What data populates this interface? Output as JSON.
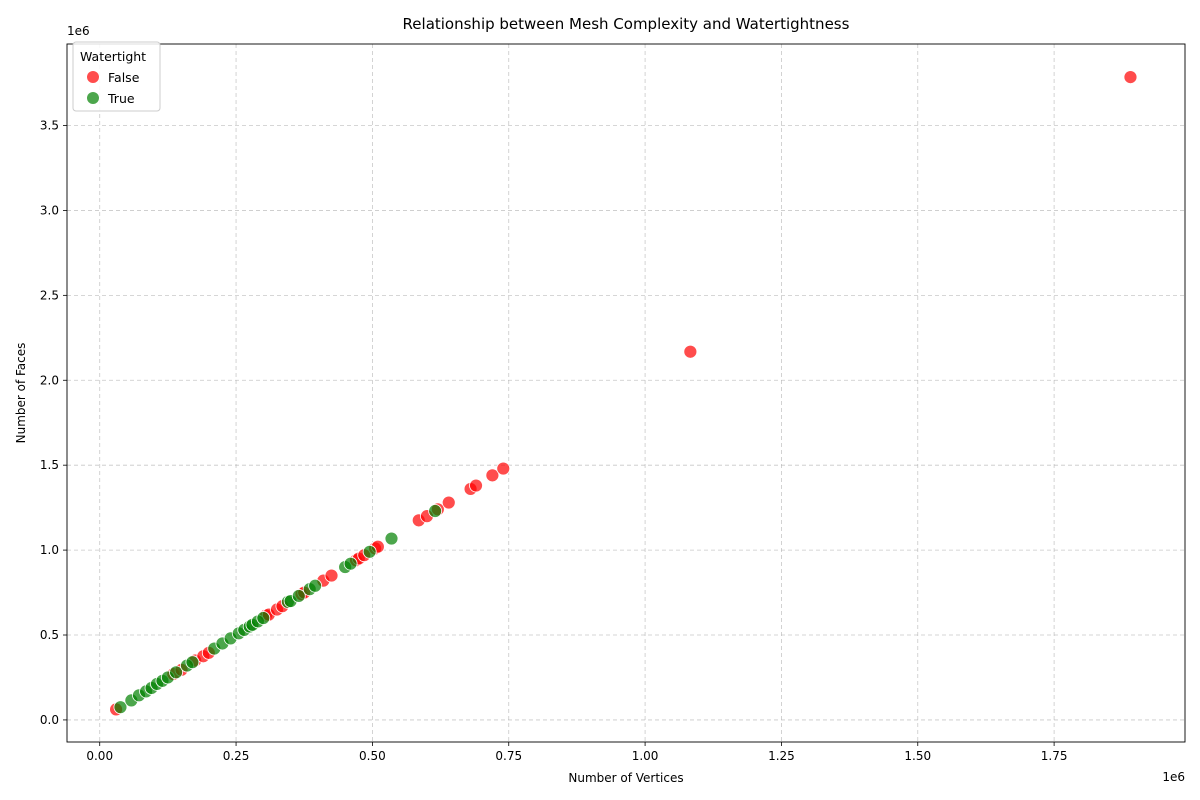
{
  "chart_data": {
    "type": "scatter",
    "title": "Relationship between Mesh Complexity and Watertightness",
    "xlabel": "Number of Vertices",
    "ylabel": "Number of Faces",
    "x_scale_label": "1e6",
    "y_scale_label": "1e6",
    "xlim": [
      -60000,
      1990000
    ],
    "ylim": [
      -130000,
      3980000
    ],
    "xticks": [
      0,
      250000,
      500000,
      750000,
      1000000,
      1250000,
      1500000,
      1750000
    ],
    "xtick_labels": [
      "0.00",
      "0.25",
      "0.50",
      "0.75",
      "1.00",
      "1.25",
      "1.50",
      "1.75"
    ],
    "yticks": [
      0,
      500000,
      1000000,
      1500000,
      2000000,
      2500000,
      3000000,
      3500000
    ],
    "ytick_labels": [
      "0.0",
      "0.5",
      "1.0",
      "1.5",
      "2.0",
      "2.5",
      "3.0",
      "3.5"
    ],
    "grid": true,
    "legend": {
      "title": "Watertight",
      "placement": "top-left"
    },
    "series": [
      {
        "name": "False",
        "color": "#ff0000",
        "points": [
          [
            30000,
            62000
          ],
          [
            135000,
            270000
          ],
          [
            150000,
            295000
          ],
          [
            175000,
            350000
          ],
          [
            190000,
            375000
          ],
          [
            200000,
            395000
          ],
          [
            305000,
            615000
          ],
          [
            310000,
            620000
          ],
          [
            325000,
            650000
          ],
          [
            335000,
            670000
          ],
          [
            370000,
            740000
          ],
          [
            375000,
            750000
          ],
          [
            410000,
            820000
          ],
          [
            425000,
            850000
          ],
          [
            470000,
            940000
          ],
          [
            475000,
            950000
          ],
          [
            485000,
            970000
          ],
          [
            505000,
            1010000
          ],
          [
            510000,
            1020000
          ],
          [
            585000,
            1175000
          ],
          [
            600000,
            1200000
          ],
          [
            620000,
            1240000
          ],
          [
            640000,
            1280000
          ],
          [
            680000,
            1360000
          ],
          [
            690000,
            1380000
          ],
          [
            720000,
            1440000
          ],
          [
            740000,
            1480000
          ],
          [
            1083000,
            2168000
          ],
          [
            1890000,
            3785000
          ]
        ]
      },
      {
        "name": "True",
        "color": "#008000",
        "points": [
          [
            38000,
            75000
          ],
          [
            58000,
            115000
          ],
          [
            72000,
            145000
          ],
          [
            85000,
            168000
          ],
          [
            95000,
            188000
          ],
          [
            105000,
            212000
          ],
          [
            115000,
            230000
          ],
          [
            125000,
            250000
          ],
          [
            140000,
            280000
          ],
          [
            160000,
            320000
          ],
          [
            170000,
            340000
          ],
          [
            210000,
            420000
          ],
          [
            225000,
            450000
          ],
          [
            240000,
            480000
          ],
          [
            255000,
            510000
          ],
          [
            265000,
            530000
          ],
          [
            275000,
            550000
          ],
          [
            280000,
            560000
          ],
          [
            290000,
            580000
          ],
          [
            300000,
            600000
          ],
          [
            345000,
            695000
          ],
          [
            350000,
            700000
          ],
          [
            365000,
            730000
          ],
          [
            385000,
            770000
          ],
          [
            395000,
            790000
          ],
          [
            450000,
            900000
          ],
          [
            460000,
            920000
          ],
          [
            495000,
            990000
          ],
          [
            535000,
            1068000
          ],
          [
            615000,
            1230000
          ]
        ]
      }
    ]
  }
}
